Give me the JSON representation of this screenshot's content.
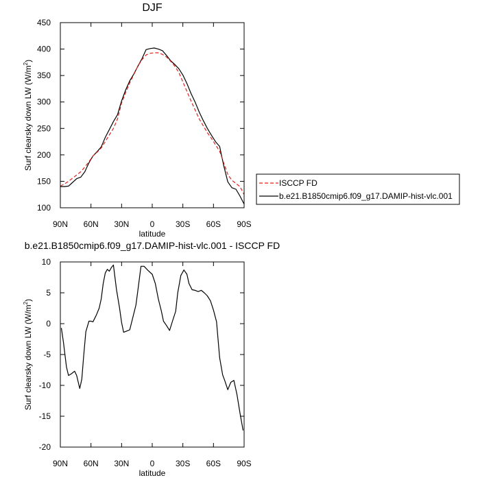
{
  "chart_data": [
    {
      "type": "line",
      "title": "DJF",
      "xlabel": "latitude",
      "ylabel": "Surf clearsky down LW (W/m",
      "ylabel_sup": "2",
      "ylabel_end": ")",
      "xticks": [
        "90N",
        "60N",
        "30N",
        "0",
        "30S",
        "60S",
        "90S"
      ],
      "xlim": [
        90,
        -90
      ],
      "ylim": [
        100,
        450
      ],
      "yticks": [
        100,
        150,
        200,
        250,
        300,
        350,
        400,
        450
      ],
      "legend": "right",
      "series": [
        {
          "name": "ISCCP FD",
          "color": "#e0201b",
          "dash": true,
          "x": [
            90,
            86,
            82,
            78,
            74,
            70,
            66,
            62,
            58,
            54,
            50,
            46,
            42,
            38,
            34,
            30,
            26,
            22,
            18,
            14,
            10,
            6,
            2,
            -2,
            -6,
            -10,
            -14,
            -18,
            -22,
            -26,
            -30,
            -34,
            -38,
            -42,
            -46,
            -50,
            -54,
            -58,
            -62,
            -66,
            -70,
            -74,
            -78,
            -82,
            -86,
            -90
          ],
          "y": [
            141,
            145,
            150,
            156,
            162,
            168,
            177,
            187,
            198,
            205,
            213,
            225,
            238,
            250,
            268,
            298,
            318,
            336,
            352,
            368,
            380,
            389,
            392,
            393,
            393,
            390,
            385,
            377,
            368,
            356,
            338,
            320,
            302,
            285,
            268,
            255,
            242,
            231,
            219,
            207,
            185,
            163,
            152,
            146,
            140,
            125
          ]
        },
        {
          "name": "b.e21.B1850cmip6.f09_g17.DAMIP-hist-vlc.001",
          "color": "#000000",
          "dash": false,
          "x": [
            90,
            86,
            82,
            78,
            74,
            70,
            66,
            62,
            58,
            54,
            50,
            46,
            42,
            38,
            34,
            30,
            26,
            22,
            18,
            14,
            10,
            6,
            2,
            -2,
            -6,
            -10,
            -14,
            -18,
            -22,
            -26,
            -30,
            -34,
            -38,
            -42,
            -46,
            -50,
            -54,
            -58,
            -62,
            -66,
            -70,
            -74,
            -78,
            -82,
            -86,
            -90
          ],
          "y": [
            140,
            140,
            141,
            148,
            155,
            158,
            168,
            185,
            198,
            206,
            215,
            233,
            248,
            263,
            276,
            302,
            323,
            340,
            353,
            368,
            382,
            399,
            401,
            402,
            400,
            397,
            388,
            378,
            371,
            363,
            351,
            335,
            316,
            300,
            281,
            265,
            250,
            237,
            225,
            216,
            180,
            149,
            138,
            135,
            122,
            107
          ]
        }
      ]
    },
    {
      "type": "line",
      "title": "b.e21.B1850cmip6.f09_g17.DAMIP-hist-vlc.001 - ISCCP FD",
      "xlabel": "latitude",
      "ylabel": "Surf clearsky down LW (W/m",
      "ylabel_sup": "2",
      "ylabel_end": ")",
      "xticks": [
        "90N",
        "60N",
        "30N",
        "0",
        "30S",
        "60S",
        "90S"
      ],
      "xlim": [
        90,
        -90
      ],
      "ylim": [
        -20,
        10
      ],
      "yticks": [
        -20,
        -15,
        -10,
        -5,
        0,
        5,
        10
      ],
      "series": [
        {
          "color": "#000000",
          "x": [
            89,
            87,
            84,
            82,
            79,
            76,
            74,
            71,
            69,
            67,
            65,
            62,
            60,
            58,
            55,
            52,
            50,
            48,
            46,
            44,
            42,
            40,
            38,
            35,
            32,
            30,
            28,
            25,
            22,
            19,
            16,
            14,
            11,
            8,
            4,
            0,
            -3,
            -6,
            -9,
            -11,
            -14,
            -17,
            -20,
            -23,
            -25,
            -28,
            -31,
            -34,
            -36,
            -39,
            -42,
            -45,
            -48,
            -51,
            -54,
            -57,
            -60,
            -63,
            -66,
            -69,
            -71,
            -74,
            -77,
            -80,
            -83,
            -86,
            -89
          ],
          "y": [
            -0.7,
            -3.0,
            -7.0,
            -8.4,
            -8.1,
            -7.7,
            -8.4,
            -10.5,
            -9.0,
            -5.0,
            -1.3,
            0.4,
            0.4,
            0.3,
            1.3,
            2.5,
            4.0,
            6.5,
            8.2,
            8.8,
            8.5,
            9.1,
            9.5,
            5.5,
            2.5,
            0.2,
            -1.4,
            -1.2,
            -1.0,
            1.0,
            3.0,
            5.5,
            9.3,
            9.3,
            8.6,
            8.0,
            6.5,
            4.0,
            2.0,
            0.4,
            -0.3,
            -1.1,
            0.5,
            2.0,
            5.0,
            7.8,
            8.7,
            8.0,
            6.5,
            5.5,
            5.4,
            5.2,
            5.4,
            5.0,
            4.5,
            3.7,
            2.2,
            0.3,
            -5.5,
            -8.3,
            -9.2,
            -10.7,
            -9.5,
            -9.2,
            -11.5,
            -14.5,
            -17.3
          ]
        }
      ]
    }
  ]
}
